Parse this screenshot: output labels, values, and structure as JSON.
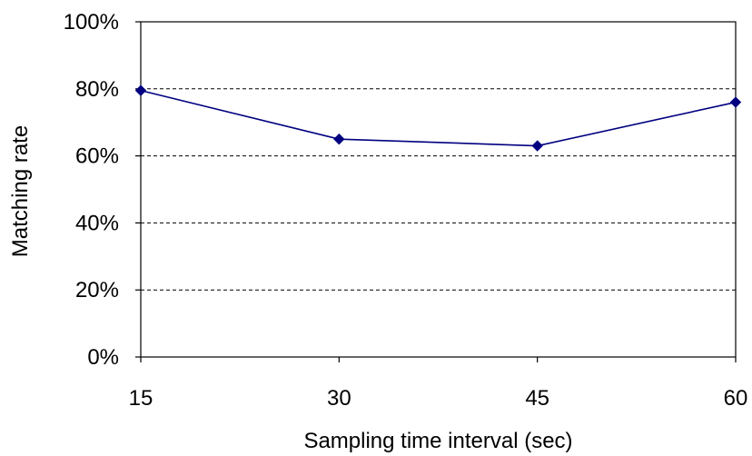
{
  "chart_data": {
    "type": "line",
    "title": "",
    "xlabel": "Sampling time interval (sec)",
    "ylabel": "Matching rate",
    "x": [
      15,
      30,
      45,
      60
    ],
    "x_tick_labels": [
      "15",
      "30",
      "45",
      "60"
    ],
    "y_tick_labels": [
      "0%",
      "20%",
      "40%",
      "60%",
      "80%",
      "100%"
    ],
    "y_ticks": [
      0,
      20,
      40,
      60,
      80,
      100
    ],
    "ylim": [
      0,
      100
    ],
    "xlim": [
      15,
      60
    ],
    "grid": "horizontal dashed",
    "legend": "none",
    "series": [
      {
        "values": [
          79.5,
          65,
          63,
          76
        ],
        "color": "#000080",
        "marker": "diamond"
      }
    ]
  }
}
